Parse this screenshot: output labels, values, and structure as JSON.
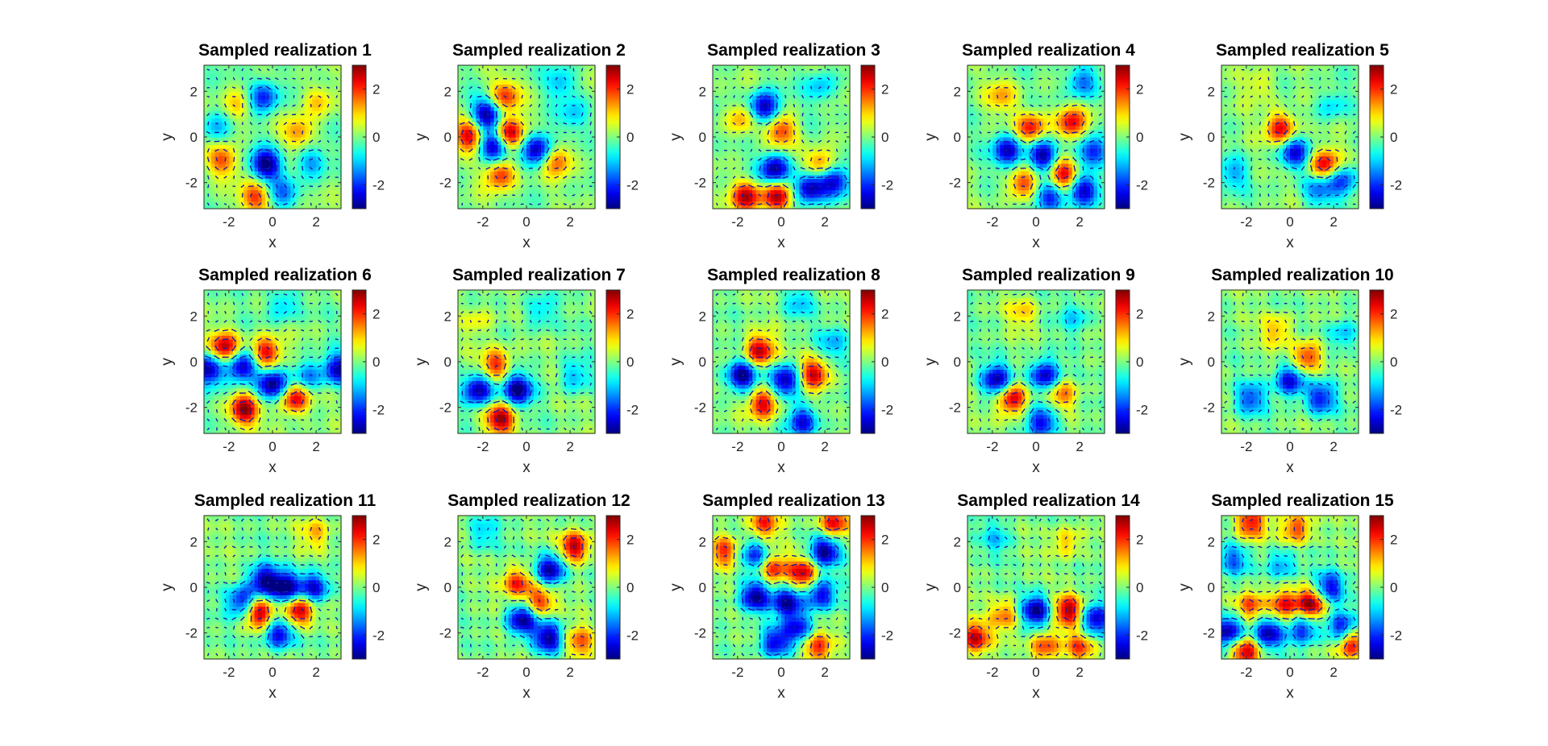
{
  "figure": {
    "background": "#ffffff",
    "colormap": "jet",
    "arrow_color": "#1a1aa6",
    "grid": "3 rows x 5 columns"
  },
  "chart_data": [
    {
      "type": "heatmap",
      "title": "Sampled realization 1",
      "xlabel": "x",
      "ylabel": "y",
      "xlim": [
        -3.14,
        3.14
      ],
      "ylim": [
        -3.14,
        3.14
      ],
      "xticks": [
        -2,
        0,
        2
      ],
      "yticks": [
        -2,
        0,
        2
      ],
      "colorbar": {
        "range": [
          -3,
          3
        ],
        "ticks": [
          -2,
          0,
          2
        ]
      },
      "features": [
        {
          "x": -0.4,
          "y": 1.8,
          "value": -2.3
        },
        {
          "x": -0.3,
          "y": -1.2,
          "value": -3
        },
        {
          "x": -2.3,
          "y": -1.0,
          "value": 1.8
        },
        {
          "x": -1.6,
          "y": 1.4,
          "value": 1.2
        },
        {
          "x": 1.2,
          "y": 0.2,
          "value": 1.4
        },
        {
          "x": 1.8,
          "y": -1.1,
          "value": -1.5
        },
        {
          "x": -0.8,
          "y": -2.6,
          "value": 2.0
        },
        {
          "x": 0.5,
          "y": -2.4,
          "value": -1.4
        },
        {
          "x": -2.6,
          "y": 0.4,
          "value": -1.2
        },
        {
          "x": 2.1,
          "y": 1.6,
          "value": 1.2
        }
      ]
    },
    {
      "type": "heatmap",
      "title": "Sampled realization 2",
      "xlabel": "x",
      "ylabel": "y",
      "xlim": [
        -3.14,
        3.14
      ],
      "ylim": [
        -3.14,
        3.14
      ],
      "xticks": [
        -2,
        0,
        2
      ],
      "yticks": [
        -2,
        0,
        2
      ],
      "colorbar": {
        "range": [
          -3,
          3
        ],
        "ticks": [
          -2,
          0,
          2
        ]
      },
      "features": [
        {
          "x": -1.8,
          "y": 1.0,
          "value": -3
        },
        {
          "x": -0.8,
          "y": 0.2,
          "value": 3
        },
        {
          "x": -1.5,
          "y": -0.4,
          "value": -3
        },
        {
          "x": 0.5,
          "y": -0.5,
          "value": -3
        },
        {
          "x": -2.6,
          "y": 0.1,
          "value": 2.6
        },
        {
          "x": -1.0,
          "y": 1.8,
          "value": 2.0
        },
        {
          "x": -1.2,
          "y": -1.6,
          "value": 2.2
        },
        {
          "x": 1.4,
          "y": -1.0,
          "value": 1.8
        },
        {
          "x": 2.2,
          "y": 1.0,
          "value": -1.0
        },
        {
          "x": 1.6,
          "y": 2.4,
          "value": -1.2
        }
      ]
    },
    {
      "type": "heatmap",
      "title": "Sampled realization 3",
      "xlabel": "x",
      "ylabel": "y",
      "xlim": [
        -3.14,
        3.14
      ],
      "ylim": [
        -3.14,
        3.14
      ],
      "xticks": [
        -2,
        0,
        2
      ],
      "yticks": [
        -2,
        0,
        2
      ],
      "colorbar": {
        "range": [
          -3,
          3
        ],
        "ticks": [
          -2,
          0,
          2
        ]
      },
      "features": [
        {
          "x": -0.8,
          "y": 1.3,
          "value": -3
        },
        {
          "x": -0.3,
          "y": -1.4,
          "value": -3
        },
        {
          "x": 1.3,
          "y": -2.2,
          "value": -3
        },
        {
          "x": 2.4,
          "y": -1.9,
          "value": -2.6
        },
        {
          "x": 0,
          "y": 0.3,
          "value": 2.0
        },
        {
          "x": -1.6,
          "y": -2.6,
          "value": 2.6
        },
        {
          "x": -0.2,
          "y": -2.6,
          "value": 2.8
        },
        {
          "x": 1.8,
          "y": -1.2,
          "value": 2.0
        },
        {
          "x": -1.8,
          "y": 0.8,
          "value": 1.4
        },
        {
          "x": 1.8,
          "y": 2.2,
          "value": -1.2
        }
      ]
    },
    {
      "type": "heatmap",
      "title": "Sampled realization 4",
      "xlabel": "x",
      "ylabel": "y",
      "xlim": [
        -3.14,
        3.14
      ],
      "ylim": [
        -3.14,
        3.14
      ],
      "xticks": [
        -2,
        0,
        2
      ],
      "yticks": [
        -2,
        0,
        2
      ],
      "colorbar": {
        "range": [
          -3,
          3
        ],
        "ticks": [
          -2,
          0,
          2
        ]
      },
      "features": [
        {
          "x": 0.3,
          "y": -0.8,
          "value": -3
        },
        {
          "x": 1.3,
          "y": -1.6,
          "value": 2.8
        },
        {
          "x": -1.3,
          "y": -0.6,
          "value": -2.6
        },
        {
          "x": 2.6,
          "y": -0.6,
          "value": -2.4
        },
        {
          "x": 2.2,
          "y": -2.3,
          "value": -2.6
        },
        {
          "x": 0.6,
          "y": -2.6,
          "value": -2.4
        },
        {
          "x": -0.2,
          "y": 0.4,
          "value": 2.2
        },
        {
          "x": 1.6,
          "y": 0.6,
          "value": 2.4
        },
        {
          "x": -0.6,
          "y": -2.0,
          "value": 2.0
        },
        {
          "x": 2.1,
          "y": 2.4,
          "value": -1.8
        },
        {
          "x": -1.6,
          "y": 1.8,
          "value": 1.2
        }
      ]
    },
    {
      "type": "heatmap",
      "title": "Sampled realization 5",
      "xlabel": "x",
      "ylabel": "y",
      "xlim": [
        -3.14,
        3.14
      ],
      "ylim": [
        -3.14,
        3.14
      ],
      "xticks": [
        -2,
        0,
        2
      ],
      "yticks": [
        -2,
        0,
        2
      ],
      "colorbar": {
        "range": [
          -3,
          3
        ],
        "ticks": [
          -2,
          0,
          2
        ]
      },
      "features": [
        {
          "x": -0.4,
          "y": 0.4,
          "value": 2.4
        },
        {
          "x": 0.2,
          "y": -0.7,
          "value": -2.4
        },
        {
          "x": 1.6,
          "y": -1.2,
          "value": 2.6
        },
        {
          "x": 2.4,
          "y": -1.9,
          "value": -2.0
        },
        {
          "x": 1.3,
          "y": -2.3,
          "value": -1.6
        },
        {
          "x": -2.6,
          "y": -1.6,
          "value": -1.2
        },
        {
          "x": 1.9,
          "y": 1.4,
          "value": -1.0
        },
        {
          "x": -1.4,
          "y": 2.3,
          "value": 0.8
        }
      ]
    },
    {
      "type": "heatmap",
      "title": "Sampled realization 6",
      "xlabel": "x",
      "ylabel": "y",
      "xlim": [
        -3.14,
        3.14
      ],
      "ylim": [
        -3.14,
        3.14
      ],
      "xticks": [
        -2,
        0,
        2
      ],
      "yticks": [
        -2,
        0,
        2
      ],
      "colorbar": {
        "range": [
          -3,
          3
        ],
        "ticks": [
          -2,
          0,
          2
        ]
      },
      "features": [
        {
          "x": -2.9,
          "y": -0.3,
          "value": -3
        },
        {
          "x": -1.4,
          "y": -0.2,
          "value": -3
        },
        {
          "x": 0,
          "y": -1.0,
          "value": -3
        },
        {
          "x": 3.0,
          "y": -0.3,
          "value": -2.6
        },
        {
          "x": -2.2,
          "y": 0.6,
          "value": 2.8
        },
        {
          "x": -0.3,
          "y": 0.4,
          "value": 2.6
        },
        {
          "x": -1.3,
          "y": -2.1,
          "value": 2.8
        },
        {
          "x": 1.0,
          "y": -1.6,
          "value": 2.6
        },
        {
          "x": 1.6,
          "y": -0.6,
          "value": -1.6
        },
        {
          "x": 0.5,
          "y": 2.5,
          "value": -1.2
        }
      ]
    },
    {
      "type": "heatmap",
      "title": "Sampled realization 7",
      "xlabel": "x",
      "ylabel": "y",
      "xlim": [
        -3.14,
        3.14
      ],
      "ylim": [
        -3.14,
        3.14
      ],
      "xticks": [
        -2,
        0,
        2
      ],
      "yticks": [
        -2,
        0,
        2
      ],
      "colorbar": {
        "range": [
          -3,
          3
        ],
        "ticks": [
          -2,
          0,
          2
        ]
      },
      "features": [
        {
          "x": -2.2,
          "y": -1.2,
          "value": -3
        },
        {
          "x": -0.4,
          "y": -1.2,
          "value": -3
        },
        {
          "x": -1.4,
          "y": -0.1,
          "value": 2.2
        },
        {
          "x": -1.2,
          "y": -2.5,
          "value": 2.8
        },
        {
          "x": 2.2,
          "y": -0.6,
          "value": -1.2
        },
        {
          "x": 0.6,
          "y": 2.2,
          "value": -1.0
        },
        {
          "x": -2.2,
          "y": 1.8,
          "value": 0.8
        }
      ]
    },
    {
      "type": "heatmap",
      "title": "Sampled realization 8",
      "xlabel": "x",
      "ylabel": "y",
      "xlim": [
        -3.14,
        3.14
      ],
      "ylim": [
        -3.14,
        3.14
      ],
      "xticks": [
        -2,
        0,
        2
      ],
      "yticks": [
        -2,
        0,
        2
      ],
      "colorbar": {
        "range": [
          -3,
          3
        ],
        "ticks": [
          -2,
          0,
          2
        ]
      },
      "features": [
        {
          "x": -1.8,
          "y": -0.6,
          "value": -3
        },
        {
          "x": 0.2,
          "y": -0.8,
          "value": -3
        },
        {
          "x": 1.0,
          "y": -2.6,
          "value": -2.4
        },
        {
          "x": -1.0,
          "y": 0.5,
          "value": 2.8
        },
        {
          "x": 1.5,
          "y": -0.5,
          "value": 2.6
        },
        {
          "x": -0.8,
          "y": -1.8,
          "value": 2.6
        },
        {
          "x": 2.4,
          "y": 0.8,
          "value": -1.2
        },
        {
          "x": 0.8,
          "y": 2.6,
          "value": -1.0
        }
      ]
    },
    {
      "type": "heatmap",
      "title": "Sampled realization 9",
      "xlabel": "x",
      "ylabel": "y",
      "xlim": [
        -3.14,
        3.14
      ],
      "ylim": [
        -3.14,
        3.14
      ],
      "xticks": [
        -2,
        0,
        2
      ],
      "yticks": [
        -2,
        0,
        2
      ],
      "colorbar": {
        "range": [
          -3,
          3
        ],
        "ticks": [
          -2,
          0,
          2
        ]
      },
      "features": [
        {
          "x": -1.8,
          "y": -0.8,
          "value": -2.8
        },
        {
          "x": 0.4,
          "y": -0.6,
          "value": -2.8
        },
        {
          "x": 0.3,
          "y": -2.6,
          "value": -2.4
        },
        {
          "x": -1.1,
          "y": -1.6,
          "value": 2.8
        },
        {
          "x": 1.2,
          "y": -1.4,
          "value": 1.6
        },
        {
          "x": 1.8,
          "y": 2.0,
          "value": -1.0
        },
        {
          "x": -0.6,
          "y": 2.2,
          "value": 1.0
        }
      ]
    },
    {
      "type": "heatmap",
      "title": "Sampled realization 10",
      "xlabel": "x",
      "ylabel": "y",
      "xlim": [
        -3.14,
        3.14
      ],
      "ylim": [
        -3.14,
        3.14
      ],
      "xticks": [
        -2,
        0,
        2
      ],
      "yticks": [
        -2,
        0,
        2
      ],
      "colorbar": {
        "range": [
          -3,
          3
        ],
        "ticks": [
          -2,
          0,
          2
        ]
      },
      "features": [
        {
          "x": 0,
          "y": -0.8,
          "value": -2.6
        },
        {
          "x": 1.4,
          "y": -1.6,
          "value": -2.2
        },
        {
          "x": 0.8,
          "y": 0.2,
          "value": 2.2
        },
        {
          "x": -1.8,
          "y": -1.6,
          "value": -1.8
        },
        {
          "x": 2.4,
          "y": 1.2,
          "value": -1.2
        },
        {
          "x": -0.6,
          "y": 1.4,
          "value": 1.2
        }
      ]
    },
    {
      "type": "heatmap",
      "title": "Sampled realization 11",
      "xlabel": "x",
      "ylabel": "y",
      "xlim": [
        -3.14,
        3.14
      ],
      "ylim": [
        -3.14,
        3.14
      ],
      "xticks": [
        -2,
        0,
        2
      ],
      "yticks": [
        -2,
        0,
        2
      ],
      "colorbar": {
        "range": [
          -3,
          3
        ],
        "ticks": [
          -2,
          0,
          2
        ]
      },
      "features": [
        {
          "x": -0.4,
          "y": 0.3,
          "value": -2.8
        },
        {
          "x": 0.6,
          "y": 0,
          "value": -3
        },
        {
          "x": 1.9,
          "y": 0,
          "value": -2.6
        },
        {
          "x": -1.4,
          "y": -0.6,
          "value": -2.4
        },
        {
          "x": 0.3,
          "y": -2.0,
          "value": -2.6
        },
        {
          "x": -0.6,
          "y": -1.1,
          "value": 2.8
        },
        {
          "x": 1.2,
          "y": -1.0,
          "value": 3
        },
        {
          "x": 2.0,
          "y": 2.4,
          "value": 1.2
        }
      ]
    },
    {
      "type": "heatmap",
      "title": "Sampled realization 12",
      "xlabel": "x",
      "ylabel": "y",
      "xlim": [
        -3.14,
        3.14
      ],
      "ylim": [
        -3.14,
        3.14
      ],
      "xticks": [
        -2,
        0,
        2
      ],
      "yticks": [
        -2,
        0,
        2
      ],
      "colorbar": {
        "range": [
          -3,
          3
        ],
        "ticks": [
          -2,
          0,
          2
        ]
      },
      "features": [
        {
          "x": 1.1,
          "y": 0.8,
          "value": -3
        },
        {
          "x": -0.2,
          "y": -1.4,
          "value": -3
        },
        {
          "x": 1.0,
          "y": -2.2,
          "value": -2.8
        },
        {
          "x": 2.2,
          "y": 1.8,
          "value": 2.8
        },
        {
          "x": -0.4,
          "y": 0.2,
          "value": 2.2
        },
        {
          "x": 0.6,
          "y": -0.6,
          "value": 2.2
        },
        {
          "x": 2.4,
          "y": -2.4,
          "value": 1.8
        },
        {
          "x": -2.0,
          "y": 2.4,
          "value": -1.0
        }
      ]
    },
    {
      "type": "heatmap",
      "title": "Sampled realization 13",
      "xlabel": "x",
      "ylabel": "y",
      "xlim": [
        -3.14,
        3.14
      ],
      "ylim": [
        -3.14,
        3.14
      ],
      "xticks": [
        -2,
        0,
        2
      ],
      "yticks": [
        -2,
        0,
        2
      ],
      "colorbar": {
        "range": [
          -3,
          3
        ],
        "ticks": [
          -2,
          0,
          2
        ]
      },
      "features": [
        {
          "x": 2.0,
          "y": 1.6,
          "value": -3
        },
        {
          "x": -1.2,
          "y": -0.4,
          "value": -3
        },
        {
          "x": 0.3,
          "y": -0.6,
          "value": -2.8
        },
        {
          "x": 1.8,
          "y": -0.3,
          "value": -2.6
        },
        {
          "x": -0.3,
          "y": -2.4,
          "value": -2.4
        },
        {
          "x": 0.8,
          "y": -1.8,
          "value": -2.2
        },
        {
          "x": 1.0,
          "y": 0.6,
          "value": 2.6
        },
        {
          "x": -0.4,
          "y": 0.8,
          "value": 2.2
        },
        {
          "x": 2.4,
          "y": 2.8,
          "value": 2.4
        },
        {
          "x": -2.6,
          "y": 1.6,
          "value": 2.0
        },
        {
          "x": -1.2,
          "y": 1.4,
          "value": -2.0
        },
        {
          "x": -0.8,
          "y": 2.8,
          "value": 2.0
        },
        {
          "x": 1.6,
          "y": -2.6,
          "value": 2.2
        }
      ]
    },
    {
      "type": "heatmap",
      "title": "Sampled realization 14",
      "xlabel": "x",
      "ylabel": "y",
      "xlim": [
        -3.14,
        3.14
      ],
      "ylim": [
        -3.14,
        3.14
      ],
      "xticks": [
        -2,
        0,
        2
      ],
      "yticks": [
        -2,
        0,
        2
      ],
      "colorbar": {
        "range": [
          -3,
          3
        ],
        "ticks": [
          -2,
          0,
          2
        ]
      },
      "features": [
        {
          "x": 0,
          "y": -1.0,
          "value": -3
        },
        {
          "x": 2.7,
          "y": -1.4,
          "value": -2.6
        },
        {
          "x": 1.5,
          "y": -1.0,
          "value": 2.8
        },
        {
          "x": -2.8,
          "y": -2.2,
          "value": 2.6
        },
        {
          "x": 0.4,
          "y": -2.6,
          "value": 2.0
        },
        {
          "x": 2.0,
          "y": -2.6,
          "value": 1.8
        },
        {
          "x": -1.4,
          "y": -1.2,
          "value": 1.6
        },
        {
          "x": -1.8,
          "y": 2.2,
          "value": -1.0
        },
        {
          "x": 1.4,
          "y": 2.0,
          "value": 1.2
        }
      ]
    },
    {
      "type": "heatmap",
      "title": "Sampled realization 15",
      "xlabel": "x",
      "ylabel": "y",
      "xlim": [
        -3.14,
        3.14
      ],
      "ylim": [
        -3.14,
        3.14
      ],
      "xticks": [
        -2,
        0,
        2
      ],
      "yticks": [
        -2,
        0,
        2
      ],
      "colorbar": {
        "range": [
          -3,
          3
        ],
        "ticks": [
          -2,
          0,
          2
        ]
      },
      "features": [
        {
          "x": 1.0,
          "y": -0.7,
          "value": 3
        },
        {
          "x": -2.8,
          "y": -1.9,
          "value": -3
        },
        {
          "x": -1.0,
          "y": -2.0,
          "value": -2.8
        },
        {
          "x": 1.8,
          "y": 0,
          "value": -2.4
        },
        {
          "x": 2.4,
          "y": -1.8,
          "value": -2.6
        },
        {
          "x": 0.6,
          "y": -1.8,
          "value": -2.2
        },
        {
          "x": -1.8,
          "y": -0.8,
          "value": 2.0
        },
        {
          "x": -0.3,
          "y": -0.8,
          "value": 2.2
        },
        {
          "x": 2.8,
          "y": -2.4,
          "value": 2.8
        },
        {
          "x": -2.0,
          "y": -2.8,
          "value": 2.6
        },
        {
          "x": -1.8,
          "y": 2.8,
          "value": 2.2
        },
        {
          "x": 0.3,
          "y": 2.6,
          "value": 2.0
        },
        {
          "x": -2.6,
          "y": 1.2,
          "value": -1.6
        },
        {
          "x": -0.4,
          "y": 1.0,
          "value": -1.4
        }
      ]
    }
  ]
}
